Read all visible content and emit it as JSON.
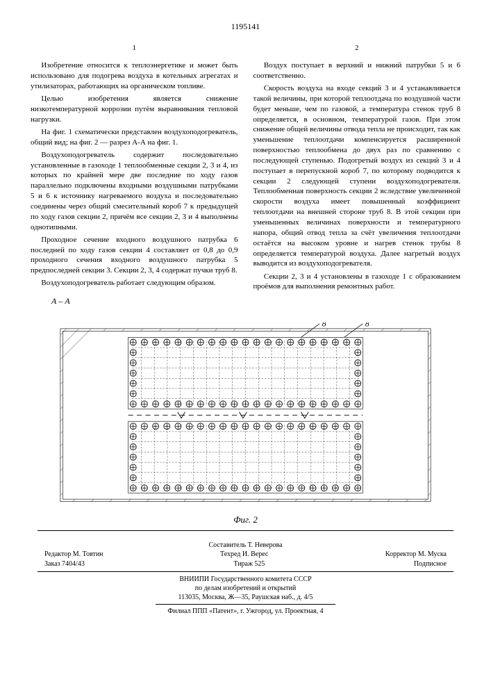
{
  "doc_number": "1195141",
  "columns": {
    "left": {
      "num": "1",
      "paras": [
        "Изобретение относится к теплоэнергетике и может быть использовано для подогрева воздуха в котельных агрегатах и утилизаторах, работающих на органическом топливе.",
        "Целью изобретения является снижение низкотемпературной коррозии путём выравнивания тепловой нагрузки.",
        "На фиг. 1 схематически представлен воздухоподогреватель, общий вид; на фиг. 2 — разрез А-А на фиг. 1.",
        "Воздухоподогреватель содержит последовательно установленные в газоходе 1 теплообменные секции 2, 3 и 4, из которых по крайней мере две последние по ходу газов параллельно подключены входными воздушными патрубками 5 и 6 к источнику нагреваемого воздуха и последовательно соединены через общий смесительный короб 7 к предыдущей по ходу газов секции 2, причём все секции 2, 3 и 4 выполнены однотипными.",
        "Проходное сечение входного воздушного патрубка 6 последней по ходу газов секции 4 составляет от 0,8 до 0,9 проходного сечения входного воздушного патрубка 5 предпоследней секции 3. Секции 2, 3, 4 содержат пучки труб 8.",
        "Воздухоподогреватель работает следующим образом."
      ]
    },
    "right": {
      "num": "2",
      "paras": [
        "Воздух поступает в верхний и нижний патрубки 5 и 6 соответственно.",
        "Скорость воздуха на входе секций 3 и 4 устанавливается такой величины, при которой теплоотдача по воздушной части будет меньше, чем по газовой, а температура стенок труб 8 определяется, в основном, температурой газов. При этом снижение общей величины отвода тепла не происходит, так как уменьшение теплоотдачи компенсируется расширенной поверхностью теплообмена до двух раз по сравнению с последующей ступенью. Подогретый воздух из секций 3 и 4 поступает в перепускной короб 7, по которому подводится к секции 2 следующей ступени воздухоподогревателя. Теплообменная поверхность секции 2 вследствие увеличенной скорости воздуха имеет повышенный коэффициент теплоотдачи на внешней стороне труб 8. В этой секции при уменьшенных величинах поверхности и температурного напора, общий отвод тепла за счёт увеличения теплоотдачи остаётся на высоком уровне и нагрев стенок трубы 8 определяется температурой воздуха. Далее нагретый воздух выводится из воздухоподогревателя.",
        "Секции 2, 3 и 4 установлены в газоходе 1 с образованием проёмов для выполнения ремонтных работ."
      ]
    }
  },
  "figure": {
    "caption": "А – А",
    "label": "Фиг. 2",
    "leads": [
      "8",
      "8"
    ]
  },
  "credits": {
    "compiler": "Составитель Т. Неверова",
    "editor": "Редактор М. Товтин",
    "techred": "Техред И. Верес",
    "corrector": "Корректор М. Муска",
    "order": "Заказ 7404/43",
    "tirage": "Тираж 525",
    "subscr": "Подписное"
  },
  "footer": {
    "line1": "ВНИИПИ Государственного комитета СССР",
    "line2": "по делам изобретений и открытий",
    "line3": "113035, Москва, Ж—35, Раушская наб., д. 4/5",
    "line4": "Филиал ППП «Патент», г. Ужгород, ул. Проектная, 4"
  }
}
